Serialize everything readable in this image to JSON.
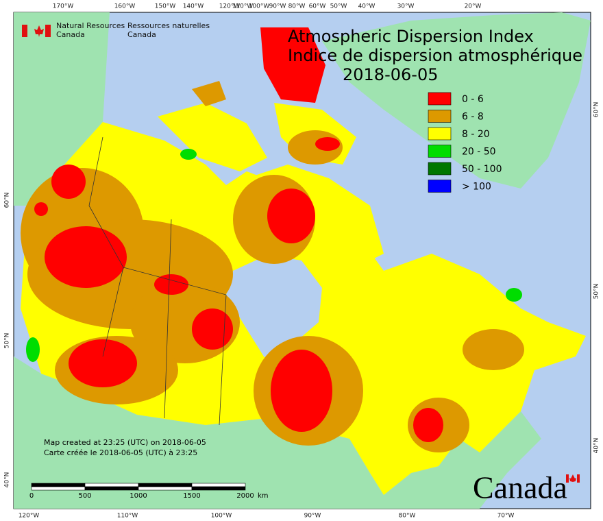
{
  "logo": {
    "english": [
      "Natural Resources",
      "Canada"
    ],
    "french": [
      "Ressources naturelles",
      "Canada"
    ]
  },
  "title": {
    "lines": [
      "Atmospheric Dispersion Index",
      "Indice de dispersion atmosphérique"
    ],
    "date": "2018-06-05"
  },
  "legend": [
    {
      "label": "0 - 6",
      "color": "#ff0000"
    },
    {
      "label": "6 - 8",
      "color": "#dd9900"
    },
    {
      "label": "8 - 20",
      "color": "#ffff00"
    },
    {
      "label": "20 - 50",
      "color": "#00dd00"
    },
    {
      "label": "50 - 100",
      "color": "#007700"
    },
    {
      "label": "> 100",
      "color": "#0000ff"
    }
  ],
  "graticule": {
    "top": [
      "170°W",
      "160°W",
      "150°W",
      "140°W",
      "120°W",
      "110°W",
      "100°W",
      "90°W",
      "80°W",
      "60°W",
      "50°W",
      "40°W",
      "30°W",
      "20°W"
    ],
    "bottom": [
      "120°W",
      "110°W",
      "100°W",
      "90°W",
      "80°W",
      "70°W"
    ],
    "left": [
      "60°N",
      "50°N",
      "40°N"
    ],
    "right": [
      "60°N",
      "50°N",
      "40°N"
    ]
  },
  "footer": {
    "created_en": "Map created at 23:25 (UTC) on 2018-06-05",
    "created_fr": "Carte créée le 2018-06-05 (UTC) à 23:25"
  },
  "scale_bar": {
    "ticks": [
      0,
      500,
      1000,
      1500,
      2000
    ],
    "unit": "km"
  },
  "wordmark": "Canada"
}
